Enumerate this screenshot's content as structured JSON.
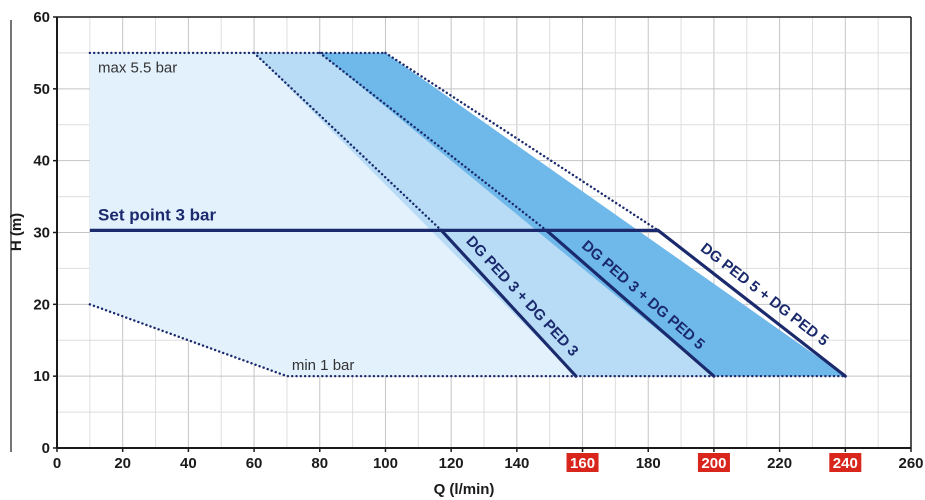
{
  "chart_data": {
    "type": "area",
    "xlabel": "Q (l/min)",
    "ylabel": "H (m)",
    "xlim": [
      0,
      260
    ],
    "ylim": [
      0,
      60
    ],
    "x_ticks": [
      {
        "value": 0,
        "label": "0",
        "highlight": false
      },
      {
        "value": 20,
        "label": "20",
        "highlight": false
      },
      {
        "value": 40,
        "label": "40",
        "highlight": false
      },
      {
        "value": 60,
        "label": "60",
        "highlight": false
      },
      {
        "value": 80,
        "label": "80",
        "highlight": false
      },
      {
        "value": 100,
        "label": "100",
        "highlight": false
      },
      {
        "value": 120,
        "label": "120",
        "highlight": false
      },
      {
        "value": 140,
        "label": "140",
        "highlight": false
      },
      {
        "value": 160,
        "label": "160",
        "highlight": true
      },
      {
        "value": 180,
        "label": "180",
        "highlight": false
      },
      {
        "value": 200,
        "label": "200",
        "highlight": true
      },
      {
        "value": 220,
        "label": "220",
        "highlight": false
      },
      {
        "value": 240,
        "label": "240",
        "highlight": true
      },
      {
        "value": 260,
        "label": "260",
        "highlight": false
      }
    ],
    "y_ticks": [
      {
        "value": 0,
        "label": "0"
      },
      {
        "value": 10,
        "label": "10"
      },
      {
        "value": 20,
        "label": "20"
      },
      {
        "value": 30,
        "label": "30"
      },
      {
        "value": 40,
        "label": "40"
      },
      {
        "value": 50,
        "label": "50"
      },
      {
        "value": 60,
        "label": "60"
      }
    ],
    "grid": true,
    "highlight_color": "#d9261c",
    "regions": [
      {
        "color": "#e3f1fd",
        "points": [
          [
            10,
            55
          ],
          [
            60,
            55
          ],
          [
            158,
            10
          ],
          [
            70,
            10
          ],
          [
            10,
            20
          ]
        ]
      },
      {
        "color": "#b8dcf6",
        "points": [
          [
            60,
            55
          ],
          [
            80,
            55
          ],
          [
            200,
            10
          ],
          [
            158,
            10
          ]
        ]
      },
      {
        "color": "#6fb8ea",
        "points": [
          [
            80,
            55
          ],
          [
            100,
            55
          ],
          [
            240,
            10
          ],
          [
            200,
            10
          ]
        ]
      }
    ],
    "boundaries": [
      {
        "points": [
          [
            10,
            55
          ],
          [
            100,
            55
          ]
        ],
        "style": "dotted"
      },
      {
        "points": [
          [
            10,
            20
          ],
          [
            70,
            10
          ],
          [
            240,
            10
          ]
        ],
        "style": "dotted"
      },
      {
        "points": [
          [
            60,
            55
          ],
          [
            117,
            30.3
          ]
        ],
        "style": "dotted"
      },
      {
        "points": [
          [
            80,
            55
          ],
          [
            149,
            30.3
          ]
        ],
        "style": "dotted"
      },
      {
        "points": [
          [
            100,
            55
          ],
          [
            183,
            30.3
          ]
        ],
        "style": "dotted"
      }
    ],
    "set_point": {
      "value": 30.3,
      "x_start": 10,
      "x_end": 183
    },
    "series": [
      {
        "name": "DG PED 3 + DG PED 3",
        "points": [
          [
            117,
            30.3
          ],
          [
            158,
            10
          ]
        ]
      },
      {
        "name": "DG PED 3 + DG PED 5",
        "points": [
          [
            149,
            30.3
          ],
          [
            200,
            10
          ]
        ]
      },
      {
        "name": "DG PED 5 + DG PED 5",
        "points": [
          [
            183,
            30.3
          ],
          [
            240,
            10
          ]
        ]
      }
    ],
    "annotations": {
      "max": "max 5.5 bar",
      "min": "min 1 bar",
      "set_point": "Set point 3 bar"
    },
    "colors": {
      "line": "#1a2a6c",
      "dotted": "#1a2a6c",
      "set_point_line": "#1a2a6c"
    }
  }
}
